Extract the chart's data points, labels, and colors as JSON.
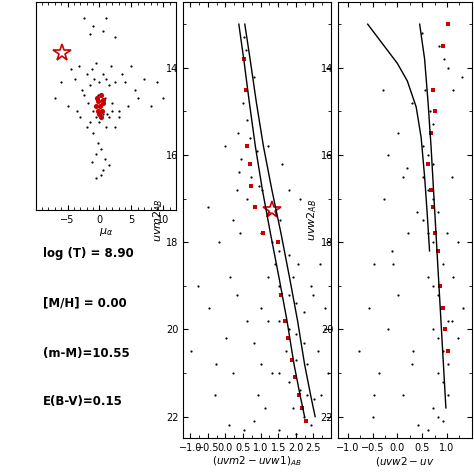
{
  "panel1": {
    "xlim": [
      -10,
      12
    ],
    "ylim": [
      -7,
      6
    ],
    "black_dots": [
      [
        -4.5,
        1.8
      ],
      [
        -3.8,
        1.2
      ],
      [
        -3.2,
        2.0
      ],
      [
        -2.8,
        0.5
      ],
      [
        -2.5,
        0.2
      ],
      [
        -2.0,
        1.5
      ],
      [
        -1.8,
        -0.3
      ],
      [
        -1.5,
        0.8
      ],
      [
        -1.2,
        1.8
      ],
      [
        -1.0,
        -0.8
      ],
      [
        -0.8,
        1.2
      ],
      [
        -0.5,
        2.2
      ],
      [
        -0.3,
        0.2
      ],
      [
        0.0,
        1.0
      ],
      [
        0.2,
        -0.5
      ],
      [
        0.5,
        1.5
      ],
      [
        0.8,
        0.0
      ],
      [
        1.0,
        1.2
      ],
      [
        1.2,
        -1.0
      ],
      [
        1.5,
        0.8
      ],
      [
        1.8,
        2.0
      ],
      [
        2.0,
        -0.3
      ],
      [
        2.5,
        1.0
      ],
      [
        3.0,
        -0.8
      ],
      [
        3.5,
        1.5
      ],
      [
        -3.5,
        -0.8
      ],
      [
        -3.0,
        -1.2
      ],
      [
        -2.0,
        -1.8
      ],
      [
        -1.5,
        -1.5
      ],
      [
        -1.0,
        -2.2
      ],
      [
        -0.5,
        -1.2
      ],
      [
        0.0,
        -1.5
      ],
      [
        0.5,
        -1.0
      ],
      [
        1.0,
        -1.8
      ],
      [
        1.5,
        -1.2
      ],
      [
        2.0,
        -0.8
      ],
      [
        2.5,
        -1.8
      ],
      [
        3.0,
        -1.2
      ],
      [
        4.0,
        1.0
      ],
      [
        4.5,
        -0.5
      ],
      [
        5.0,
        2.0
      ],
      [
        5.5,
        0.5
      ],
      [
        6.0,
        0.0
      ],
      [
        7.0,
        1.2
      ],
      [
        8.0,
        -0.5
      ],
      [
        -5.0,
        -0.5
      ],
      [
        -6.0,
        1.0
      ],
      [
        -7.0,
        0.0
      ],
      [
        9.0,
        1.0
      ],
      [
        10.0,
        0.0
      ],
      [
        -0.2,
        -2.8
      ],
      [
        0.3,
        -3.2
      ],
      [
        -0.5,
        -3.5
      ],
      [
        0.8,
        -3.8
      ],
      [
        -1.5,
        4.0
      ],
      [
        0.5,
        4.2
      ],
      [
        2.5,
        3.8
      ],
      [
        -2.5,
        5.0
      ],
      [
        -1.0,
        4.5
      ],
      [
        1.0,
        5.0
      ],
      [
        -0.5,
        -5.0
      ],
      [
        0.5,
        -4.5
      ],
      [
        -1.2,
        -4.0
      ],
      [
        0.2,
        -4.8
      ],
      [
        1.5,
        -4.2
      ]
    ],
    "red_dots": [
      [
        -0.3,
        -0.2
      ],
      [
        0.1,
        -0.5
      ],
      [
        0.4,
        -0.8
      ],
      [
        -0.2,
        -0.8
      ],
      [
        0.6,
        -0.3
      ],
      [
        -0.6,
        -0.5
      ],
      [
        0.3,
        -1.2
      ],
      [
        -0.1,
        -1.0
      ],
      [
        0.5,
        -0.1
      ],
      [
        -0.4,
        0.0
      ],
      [
        0.2,
        0.2
      ]
    ],
    "star_x": -5.8,
    "star_y": 2.8,
    "xticks": [
      -5,
      0,
      5,
      10
    ]
  },
  "panel2": {
    "xlim": [
      -1.2,
      3.0
    ],
    "ylim": [
      22.5,
      12.5
    ],
    "black_dots": [
      [
        0.52,
        13.3
      ],
      [
        0.58,
        13.6
      ],
      [
        0.5,
        14.8
      ],
      [
        0.6,
        15.2
      ],
      [
        0.35,
        15.5
      ],
      [
        0.7,
        15.6
      ],
      [
        0.9,
        15.9
      ],
      [
        0.45,
        16.1
      ],
      [
        0.38,
        16.4
      ],
      [
        0.72,
        16.5
      ],
      [
        0.95,
        16.7
      ],
      [
        1.05,
        16.8
      ],
      [
        0.62,
        17.0
      ],
      [
        0.82,
        17.2
      ],
      [
        1.25,
        17.3
      ],
      [
        1.55,
        17.5
      ],
      [
        1.02,
        17.8
      ],
      [
        1.32,
        18.0
      ],
      [
        1.52,
        18.2
      ],
      [
        1.82,
        18.3
      ],
      [
        2.05,
        18.5
      ],
      [
        1.22,
        18.8
      ],
      [
        1.52,
        19.0
      ],
      [
        1.82,
        19.2
      ],
      [
        2.02,
        19.4
      ],
      [
        2.22,
        19.6
      ],
      [
        1.52,
        19.8
      ],
      [
        1.82,
        20.0
      ],
      [
        2.02,
        20.1
      ],
      [
        2.22,
        20.3
      ],
      [
        1.72,
        20.5
      ],
      [
        2.02,
        20.7
      ],
      [
        2.32,
        20.8
      ],
      [
        1.52,
        21.0
      ],
      [
        1.82,
        21.2
      ],
      [
        2.12,
        21.4
      ],
      [
        2.32,
        21.5
      ],
      [
        2.52,
        21.6
      ],
      [
        1.92,
        21.8
      ],
      [
        2.22,
        22.0
      ],
      [
        2.42,
        22.2
      ],
      [
        0.32,
        16.8
      ],
      [
        0.22,
        17.5
      ],
      [
        -0.18,
        18.0
      ],
      [
        0.12,
        18.8
      ],
      [
        -0.48,
        19.5
      ],
      [
        0.02,
        20.2
      ],
      [
        -0.28,
        20.8
      ],
      [
        0.22,
        21.0
      ],
      [
        1.02,
        19.5
      ],
      [
        1.22,
        19.8
      ],
      [
        0.82,
        20.3
      ],
      [
        1.02,
        20.8
      ],
      [
        1.32,
        21.0
      ],
      [
        0.92,
        21.5
      ],
      [
        1.12,
        21.8
      ],
      [
        2.82,
        20.0
      ],
      [
        2.62,
        20.5
      ],
      [
        2.92,
        21.0
      ],
      [
        2.72,
        21.5
      ],
      [
        0.52,
        22.3
      ],
      [
        0.82,
        22.1
      ],
      [
        1.52,
        22.3
      ],
      [
        2.02,
        22.4
      ],
      [
        -0.78,
        19.0
      ],
      [
        -0.98,
        20.5
      ],
      [
        0.42,
        17.8
      ],
      [
        1.62,
        16.2
      ],
      [
        1.82,
        16.8
      ],
      [
        2.12,
        17.0
      ],
      [
        0.32,
        19.2
      ],
      [
        0.62,
        19.8
      ],
      [
        1.42,
        18.5
      ],
      [
        1.92,
        18.8
      ],
      [
        2.42,
        19.0
      ],
      [
        2.82,
        19.5
      ],
      [
        -0.3,
        21.5
      ],
      [
        0.1,
        22.2
      ],
      [
        2.5,
        19.2
      ],
      [
        2.7,
        18.5
      ],
      [
        0.8,
        14.2
      ],
      [
        1.2,
        15.8
      ],
      [
        -0.5,
        17.2
      ],
      [
        0.0,
        15.8
      ]
    ],
    "red_squares": [
      [
        0.52,
        13.8
      ],
      [
        0.58,
        14.5
      ],
      [
        0.62,
        15.8
      ],
      [
        0.7,
        16.2
      ],
      [
        0.73,
        16.7
      ],
      [
        0.83,
        17.2
      ],
      [
        1.08,
        17.8
      ],
      [
        1.48,
        18.0
      ],
      [
        1.58,
        19.2
      ],
      [
        1.68,
        19.8
      ],
      [
        1.78,
        20.2
      ],
      [
        1.88,
        20.7
      ],
      [
        1.98,
        21.1
      ],
      [
        2.08,
        21.5
      ],
      [
        2.18,
        21.8
      ],
      [
        2.28,
        22.1
      ]
    ],
    "star_x": 1.32,
    "star_y": 17.25,
    "iso1_x": [
      0.38,
      0.52,
      0.68,
      0.85,
      1.05,
      1.28,
      1.52,
      1.75,
      1.95,
      2.12,
      2.25
    ],
    "iso1_y": [
      13.0,
      13.8,
      14.8,
      15.8,
      16.8,
      17.8,
      18.8,
      19.8,
      20.8,
      21.5,
      22.0
    ],
    "iso2_x": [
      0.55,
      0.7,
      0.88,
      1.08,
      1.32,
      1.58,
      1.82,
      2.05,
      2.25,
      2.42,
      2.55
    ],
    "iso2_y": [
      13.0,
      13.8,
      14.8,
      15.8,
      16.8,
      17.8,
      18.8,
      19.8,
      20.8,
      21.5,
      22.0
    ],
    "xticks": [
      -1,
      -0.5,
      0,
      0.5,
      1,
      1.5,
      2,
      2.5
    ],
    "yticks": [
      14,
      16,
      18,
      20,
      22
    ]
  },
  "panel3": {
    "xlim": [
      -1.2,
      1.5
    ],
    "ylim": [
      22.5,
      12.5
    ],
    "black_dots": [
      [
        0.85,
        13.5
      ],
      [
        0.95,
        13.8
      ],
      [
        0.55,
        14.5
      ],
      [
        0.65,
        15.0
      ],
      [
        0.72,
        15.3
      ],
      [
        0.52,
        15.8
      ],
      [
        0.62,
        16.0
      ],
      [
        0.72,
        16.2
      ],
      [
        0.52,
        16.5
      ],
      [
        0.62,
        16.8
      ],
      [
        0.72,
        17.0
      ],
      [
        0.82,
        17.3
      ],
      [
        0.52,
        17.5
      ],
      [
        0.62,
        17.8
      ],
      [
        0.72,
        18.0
      ],
      [
        0.82,
        18.2
      ],
      [
        0.92,
        18.5
      ],
      [
        0.62,
        18.8
      ],
      [
        0.72,
        19.0
      ],
      [
        0.82,
        19.2
      ],
      [
        0.92,
        19.5
      ],
      [
        1.02,
        19.8
      ],
      [
        0.72,
        20.0
      ],
      [
        0.82,
        20.2
      ],
      [
        0.92,
        20.5
      ],
      [
        1.02,
        20.8
      ],
      [
        0.82,
        21.0
      ],
      [
        0.92,
        21.2
      ],
      [
        1.02,
        21.5
      ],
      [
        0.72,
        21.8
      ],
      [
        0.82,
        22.0
      ],
      [
        0.02,
        15.5
      ],
      [
        -0.18,
        16.0
      ],
      [
        0.12,
        16.5
      ],
      [
        -0.28,
        17.0
      ],
      [
        0.22,
        17.8
      ],
      [
        -0.08,
        18.5
      ],
      [
        0.02,
        19.2
      ],
      [
        -0.18,
        20.0
      ],
      [
        0.32,
        20.5
      ],
      [
        -0.38,
        21.0
      ],
      [
        0.12,
        21.5
      ],
      [
        1.22,
        18.0
      ],
      [
        1.12,
        18.8
      ],
      [
        1.32,
        19.5
      ],
      [
        1.22,
        20.2
      ],
      [
        1.02,
        14.0
      ],
      [
        1.12,
        14.5
      ],
      [
        -0.48,
        18.5
      ],
      [
        -0.58,
        19.5
      ],
      [
        -0.78,
        20.5
      ],
      [
        -0.48,
        21.5
      ],
      [
        0.42,
        22.2
      ],
      [
        0.62,
        22.3
      ],
      [
        0.92,
        22.1
      ],
      [
        0.3,
        14.8
      ],
      [
        -0.3,
        14.5
      ],
      [
        0.5,
        13.2
      ],
      [
        1.3,
        14.2
      ],
      [
        0.2,
        16.3
      ],
      [
        1.1,
        16.5
      ],
      [
        0.4,
        17.3
      ],
      [
        1.0,
        17.8
      ],
      [
        -0.1,
        18.2
      ],
      [
        1.1,
        19.8
      ],
      [
        0.3,
        20.8
      ],
      [
        -0.5,
        22.0
      ]
    ],
    "red_squares": [
      [
        1.02,
        13.0
      ],
      [
        0.92,
        13.5
      ],
      [
        0.72,
        14.5
      ],
      [
        0.77,
        15.0
      ],
      [
        0.67,
        15.5
      ],
      [
        0.62,
        16.2
      ],
      [
        0.67,
        16.8
      ],
      [
        0.72,
        17.2
      ],
      [
        0.77,
        17.8
      ],
      [
        0.82,
        18.2
      ],
      [
        0.87,
        19.0
      ],
      [
        0.92,
        19.5
      ],
      [
        0.97,
        20.0
      ],
      [
        1.02,
        20.5
      ]
    ],
    "iso1_x": [
      -0.6,
      -0.4,
      -0.2,
      0.0,
      0.2,
      0.38,
      0.48,
      0.55,
      0.6,
      0.65
    ],
    "iso1_y": [
      13.0,
      13.3,
      13.6,
      13.9,
      14.3,
      14.9,
      15.6,
      16.5,
      17.3,
      18.2
    ],
    "iso2_x": [
      0.45,
      0.55,
      0.62,
      0.68,
      0.73,
      0.78,
      0.83,
      0.88,
      0.93,
      0.98
    ],
    "iso2_y": [
      13.0,
      13.8,
      14.8,
      15.8,
      16.8,
      17.8,
      18.8,
      19.8,
      20.8,
      21.8
    ],
    "xticks": [
      -1,
      -0.5,
      0,
      0.5,
      1
    ],
    "yticks": [
      14,
      16,
      18,
      20,
      22
    ]
  },
  "text_lines": [
    "log (T) = 8.90",
    "[M/H] = 0.00",
    "(m-M)=10.55",
    "E(B-V)=0.15"
  ],
  "bg_color": "#ffffff",
  "dot_color": "#000000",
  "red_color": "#cc0000"
}
